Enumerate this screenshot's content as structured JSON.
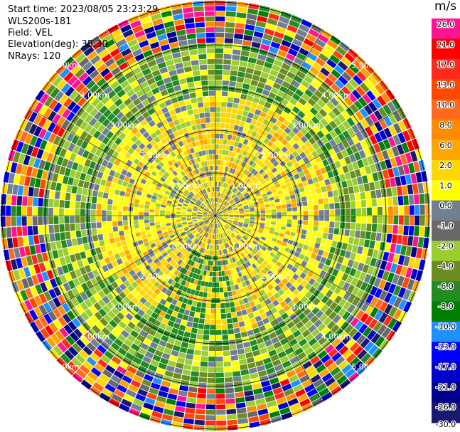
{
  "info": {
    "start_time": "Start time: 2023/08/05 23:23:29",
    "instrument": "WLS200s-181",
    "field": "Field: VEL",
    "elevation": "Elevation(deg): 35.30",
    "nrays": "NRays: 120"
  },
  "colorbar": {
    "unit": "m/s",
    "ticks": [
      "26.0",
      "21.0",
      "17.0",
      "13.0",
      "10.0",
      "8.0",
      "6.0",
      "2.0",
      "1.0",
      "0.0",
      "-1.0",
      "-2.0",
      "-4.0",
      "-6.0",
      "-8.0",
      "-10.0",
      "-13.0",
      "-17.0",
      "-21.0",
      "-26.0",
      "-30.0"
    ],
    "colors": [
      "#ff1493",
      "#ff0000",
      "#ff2a1a",
      "#ff4800",
      "#ff6a1e",
      "#ff8c00",
      "#ffa500",
      "#ffd700",
      "#ffff00",
      "#708090",
      "#696969",
      "#9acd32",
      "#6b8e23",
      "#228b22",
      "#008000",
      "#1e90ff",
      "#0000ff",
      "#0000cd",
      "#00008b",
      "#191970"
    ]
  },
  "chart_data": {
    "type": "heatmap",
    "projection": "polar PPI",
    "field": "VEL",
    "units": "m/s",
    "nrays": 120,
    "range_rings_km": [
      1,
      2,
      3,
      4,
      5
    ],
    "ring_labels": [
      "1.00km",
      "2.00km",
      "3.00km",
      "4.00km",
      "5.00km"
    ],
    "color_scale": {
      "boundaries": [
        -30.0,
        -26.0,
        -21.0,
        -17.0,
        -13.0,
        -10.0,
        -8.0,
        -6.0,
        -4.0,
        -2.0,
        -1.0,
        0.0,
        1.0,
        2.0,
        6.0,
        8.0,
        10.0,
        13.0,
        17.0,
        21.0,
        26.0
      ]
    },
    "spoke_angles_deg": [
      0,
      30,
      60,
      90,
      120,
      150,
      180,
      210,
      240,
      270,
      300,
      330
    ]
  }
}
